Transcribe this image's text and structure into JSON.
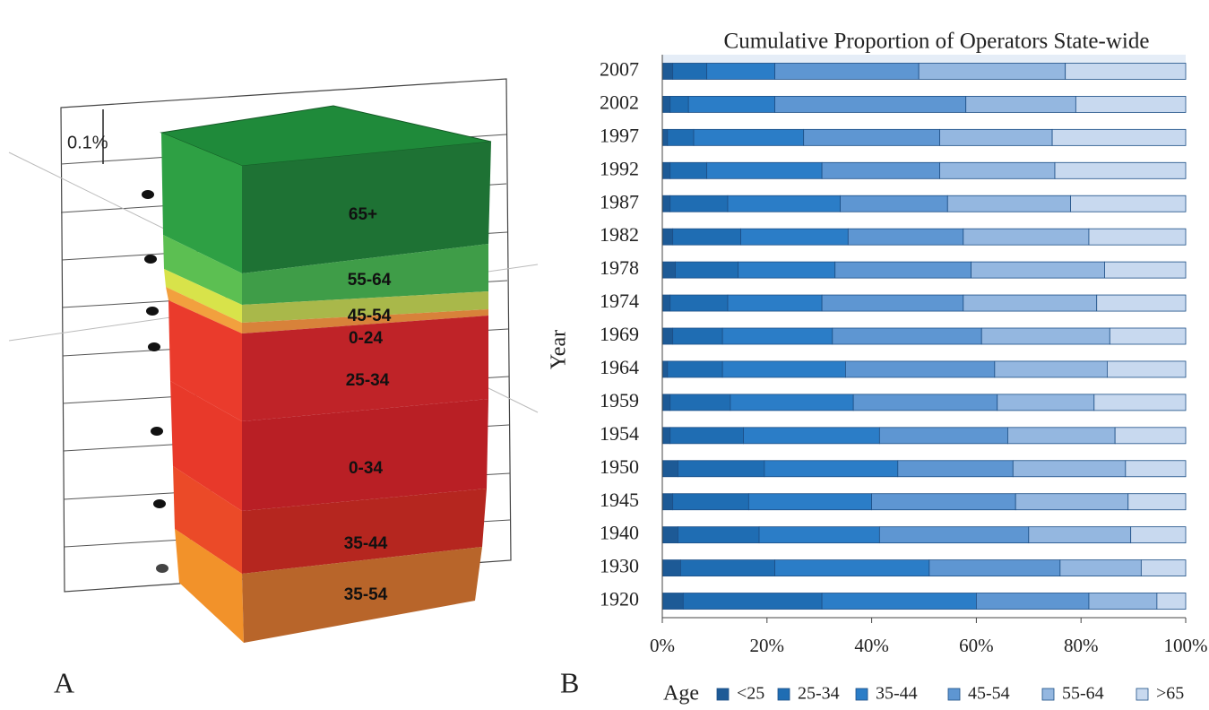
{
  "panel_a": {
    "panel_label": "A",
    "scale_label": "0.1%",
    "layers": [
      "65+",
      "55-64",
      "45-54",
      "0-24",
      "25-34",
      "0-34",
      "35-44",
      "35-54"
    ]
  },
  "chart_data": {
    "type": "bar",
    "orientation": "horizontal",
    "stacked": true,
    "panel_label": "B",
    "title": "Cumulative Proportion of Operators State-wide",
    "y_label": "Year",
    "legend_title": "Age",
    "categories": [
      "2007",
      "2002",
      "1997",
      "1992",
      "1987",
      "1982",
      "1978",
      "1974",
      "1969",
      "1964",
      "1959",
      "1954",
      "1950",
      "1945",
      "1940",
      "1930",
      "1920"
    ],
    "series": [
      {
        "name": "<25",
        "color": "#1d5a96",
        "values": [
          2,
          1.5,
          1,
          1.5,
          1.5,
          2,
          2.5,
          1.5,
          2,
          1,
          1.5,
          1.5,
          3,
          2,
          3,
          3.5,
          4
        ]
      },
      {
        "name": "25-34",
        "color": "#1f6db3",
        "values": [
          6.5,
          3.5,
          5,
          7,
          11,
          13,
          12,
          11,
          9.5,
          10.5,
          11.5,
          14,
          16.5,
          14.5,
          15.5,
          18,
          26.5
        ]
      },
      {
        "name": "35-44",
        "color": "#2b7dc7",
        "values": [
          13,
          16.5,
          21,
          22,
          21.5,
          20.5,
          18.5,
          18,
          21,
          23.5,
          23.5,
          26,
          25.5,
          23.5,
          23,
          29.5,
          29.5
        ]
      },
      {
        "name": "45-54",
        "color": "#5e96d2",
        "values": [
          27.5,
          36.5,
          26,
          22.5,
          20.5,
          22,
          26,
          27,
          28.5,
          28.5,
          27.5,
          24.5,
          22,
          27.5,
          28.5,
          25,
          21.5
        ]
      },
      {
        "name": "55-64",
        "color": "#94b7e0",
        "values": [
          28,
          21,
          21.5,
          22,
          23.5,
          24,
          25.5,
          25.5,
          24.5,
          21.5,
          18.5,
          20.5,
          21.5,
          21.5,
          19.5,
          15.5,
          13
        ]
      },
      {
        "name": ">65",
        "color": "#c8d9ef",
        "values": [
          23,
          21,
          25.5,
          25,
          22,
          18.5,
          15.5,
          17,
          14.5,
          15,
          17.5,
          13.5,
          11.5,
          11,
          10.5,
          8.5,
          5.5
        ]
      }
    ],
    "xlim": [
      0,
      100
    ],
    "xticks": [
      {
        "value": 0,
        "label": "0%"
      },
      {
        "value": 20,
        "label": "20%"
      },
      {
        "value": 40,
        "label": "40%"
      },
      {
        "value": 60,
        "label": "60%"
      },
      {
        "value": 80,
        "label": "80%"
      },
      {
        "value": 100,
        "label": "100%"
      }
    ]
  }
}
